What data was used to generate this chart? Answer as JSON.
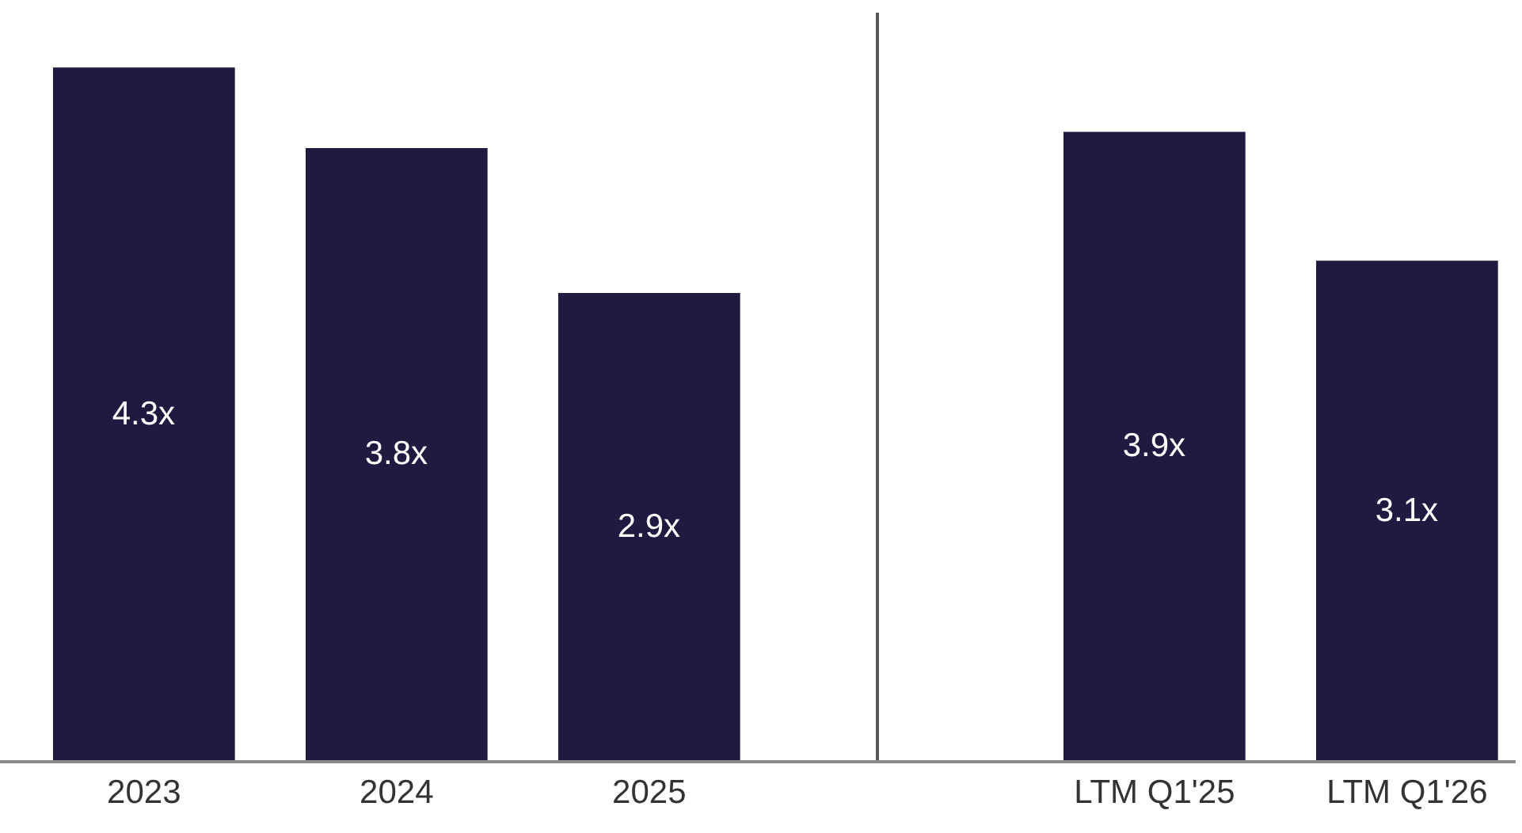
{
  "chart_data": [
    {
      "type": "bar",
      "categories": [
        "2023",
        "2024",
        "2025"
      ],
      "values": [
        4.3,
        3.8,
        2.9
      ],
      "value_labels": [
        "4.3x",
        "3.8x",
        "2.9x"
      ],
      "color": "#1e1a40",
      "ylim": [
        0,
        4.64
      ],
      "tick_labels": "x"
    },
    {
      "type": "bar",
      "categories": [
        "LTM Q1'25",
        "LTM Q1'26"
      ],
      "values": [
        3.9,
        3.1
      ],
      "value_labels": [
        "3.9x",
        "3.1x"
      ],
      "color": "#1e1a40",
      "ylim": [
        0,
        4.64
      ],
      "tick_labels": "x"
    }
  ]
}
